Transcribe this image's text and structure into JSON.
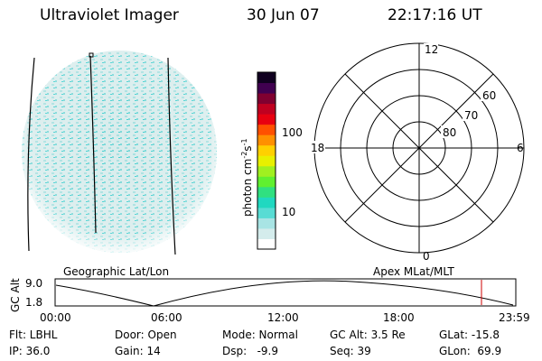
{
  "header": {
    "title": "Ultraviolet Imager",
    "date": "30 Jun 07",
    "time": "22:17:16 UT"
  },
  "colorbar": {
    "label": "photon cm",
    "label_sup1": "-2",
    "label_mid": "s",
    "label_sup2": "-1",
    "ticks": [
      "100",
      "10"
    ],
    "colors": [
      "#ffffff",
      "#d4ecec",
      "#a8e4e4",
      "#58dcd4",
      "#20d8c0",
      "#30e080",
      "#60f030",
      "#a0f020",
      "#e8f000",
      "#ffd000",
      "#ff9000",
      "#ff5000",
      "#e80010",
      "#c00020",
      "#800030",
      "#400050",
      "#100020"
    ]
  },
  "polar_plot": {
    "mlt_labels": {
      "top": "12",
      "left": "18",
      "right": "6",
      "bottom": "0"
    },
    "lat_labels": [
      "60",
      "70",
      "80"
    ]
  },
  "timeline": {
    "left_label": "Geographic Lat/Lon",
    "right_label": "Apex MLat/MLT",
    "axis_label": "GC Alt",
    "y_ticks": [
      "9.0",
      "1.8"
    ],
    "x_ticks": [
      "00:00",
      "06:00",
      "12:00",
      "18:00",
      "23:59"
    ],
    "marker_color": "#cc0000"
  },
  "info": {
    "flt": "Flt: LBHL",
    "ip": "IP: 36.0",
    "door": "Door: Open",
    "gain": "Gain: 14",
    "mode": "Mode: Normal",
    "dsp": "Dsp:   -9.9",
    "gcalt": "GC Alt: 3.5 Re",
    "seq": "Seq: 39",
    "glat": "GLat: -15.8",
    "glon": "GLon:  69.9"
  }
}
